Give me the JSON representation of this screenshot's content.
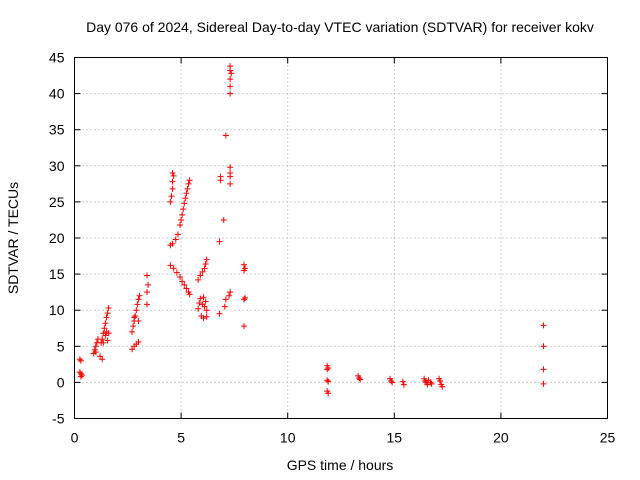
{
  "chart_data": {
    "type": "scatter",
    "title": "Day 076 of 2024, Sidereal Day-to-day VTEC variation (SDTVAR) for receiver kokv",
    "xlabel": "GPS time / hours",
    "ylabel": "SDTVAR / TECUs",
    "xlim": [
      0,
      25
    ],
    "ylim": [
      -5,
      45
    ],
    "xticks": [
      0,
      5,
      10,
      15,
      20,
      25
    ],
    "yticks": [
      -5,
      0,
      5,
      10,
      15,
      20,
      25,
      30,
      35,
      40,
      45
    ],
    "grid": true,
    "marker": "+",
    "color": "#ff0000",
    "series": [
      {
        "name": "SDTVAR",
        "points": [
          [
            0.25,
            3.2
          ],
          [
            0.3,
            3.0
          ],
          [
            0.25,
            1.4
          ],
          [
            0.3,
            1.2
          ],
          [
            0.35,
            1.0
          ],
          [
            0.3,
            0.8
          ],
          [
            0.9,
            4.0
          ],
          [
            0.95,
            4.5
          ],
          [
            1.0,
            5.0
          ],
          [
            1.05,
            5.5
          ],
          [
            1.1,
            6.0
          ],
          [
            1.0,
            4.2
          ],
          [
            1.2,
            3.6
          ],
          [
            1.3,
            3.2
          ],
          [
            1.25,
            5.5
          ],
          [
            1.3,
            6.0
          ],
          [
            1.35,
            6.8
          ],
          [
            1.4,
            7.5
          ],
          [
            1.45,
            8.2
          ],
          [
            1.5,
            9.0
          ],
          [
            1.55,
            9.6
          ],
          [
            1.6,
            10.3
          ],
          [
            1.35,
            5.5
          ],
          [
            1.45,
            6.5
          ],
          [
            1.5,
            7.0
          ],
          [
            1.6,
            6.8
          ],
          [
            1.55,
            5.8
          ],
          [
            2.7,
            4.6
          ],
          [
            2.8,
            5.0
          ],
          [
            2.9,
            5.3
          ],
          [
            3.0,
            5.6
          ],
          [
            2.7,
            7.0
          ],
          [
            2.75,
            7.8
          ],
          [
            2.8,
            8.5
          ],
          [
            2.85,
            9.2
          ],
          [
            2.9,
            10.0
          ],
          [
            2.95,
            10.8
          ],
          [
            3.0,
            11.5
          ],
          [
            3.05,
            12.0
          ],
          [
            2.8,
            9.0
          ],
          [
            3.0,
            8.5
          ],
          [
            3.4,
            10.8
          ],
          [
            3.4,
            12.5
          ],
          [
            3.45,
            13.5
          ],
          [
            3.4,
            14.8
          ],
          [
            4.5,
            25.0
          ],
          [
            4.55,
            25.8
          ],
          [
            4.6,
            26.8
          ],
          [
            4.6,
            27.8
          ],
          [
            4.65,
            28.6
          ],
          [
            4.6,
            29.0
          ],
          [
            4.5,
            19.0
          ],
          [
            4.6,
            19.2
          ],
          [
            4.75,
            19.8
          ],
          [
            4.85,
            20.5
          ],
          [
            4.95,
            21.8
          ],
          [
            5.0,
            22.5
          ],
          [
            5.05,
            23.2
          ],
          [
            5.1,
            24.0
          ],
          [
            5.15,
            24.8
          ],
          [
            5.2,
            25.5
          ],
          [
            5.25,
            26.2
          ],
          [
            5.3,
            26.8
          ],
          [
            5.35,
            27.5
          ],
          [
            5.4,
            28.0
          ],
          [
            4.5,
            16.2
          ],
          [
            4.65,
            15.8
          ],
          [
            4.8,
            15.2
          ],
          [
            4.95,
            14.6
          ],
          [
            5.05,
            14.0
          ],
          [
            5.15,
            13.5
          ],
          [
            5.25,
            13.0
          ],
          [
            5.35,
            12.5
          ],
          [
            5.4,
            12.2
          ],
          [
            5.8,
            10.2
          ],
          [
            5.85,
            11.0
          ],
          [
            5.9,
            11.6
          ],
          [
            6.0,
            10.8
          ],
          [
            6.05,
            11.8
          ],
          [
            6.1,
            10.5
          ],
          [
            6.15,
            11.2
          ],
          [
            6.2,
            10.0
          ],
          [
            5.95,
            9.2
          ],
          [
            6.05,
            8.9
          ],
          [
            6.2,
            9.1
          ],
          [
            5.8,
            14.2
          ],
          [
            5.9,
            14.8
          ],
          [
            6.0,
            15.3
          ],
          [
            6.1,
            15.8
          ],
          [
            6.15,
            16.4
          ],
          [
            6.2,
            17.0
          ],
          [
            6.8,
            9.5
          ],
          [
            6.8,
            19.5
          ],
          [
            6.85,
            28.0
          ],
          [
            6.85,
            28.5
          ],
          [
            7.0,
            22.5
          ],
          [
            7.05,
            10.5
          ],
          [
            7.1,
            11.5
          ],
          [
            7.1,
            34.2
          ],
          [
            7.25,
            12.0
          ],
          [
            7.3,
            12.5
          ],
          [
            7.3,
            27.5
          ],
          [
            7.3,
            28.5
          ],
          [
            7.3,
            29.0
          ],
          [
            7.3,
            29.8
          ],
          [
            7.3,
            40.0
          ],
          [
            7.3,
            41.0
          ],
          [
            7.3,
            42.0
          ],
          [
            7.35,
            42.8
          ],
          [
            7.3,
            43.2
          ],
          [
            7.3,
            43.8
          ],
          [
            7.95,
            16.3
          ],
          [
            8.0,
            15.8
          ],
          [
            7.95,
            15.5
          ],
          [
            8.0,
            11.7
          ],
          [
            7.95,
            11.5
          ],
          [
            7.95,
            7.8
          ],
          [
            11.85,
            2.3
          ],
          [
            11.9,
            2.0
          ],
          [
            11.85,
            1.8
          ],
          [
            11.85,
            0.3
          ],
          [
            11.9,
            0.1
          ],
          [
            11.85,
            -1.2
          ],
          [
            11.9,
            -1.5
          ],
          [
            13.3,
            0.9
          ],
          [
            13.35,
            0.6
          ],
          [
            13.4,
            0.4
          ],
          [
            14.8,
            0.5
          ],
          [
            14.85,
            0.2
          ],
          [
            14.9,
            0.0
          ],
          [
            15.4,
            0.1
          ],
          [
            15.45,
            -0.3
          ],
          [
            16.4,
            0.5
          ],
          [
            16.45,
            0.2
          ],
          [
            16.5,
            0.0
          ],
          [
            16.55,
            -0.3
          ],
          [
            16.6,
            0.3
          ],
          [
            16.7,
            0.0
          ],
          [
            16.75,
            -0.2
          ],
          [
            17.1,
            0.5
          ],
          [
            17.15,
            0.2
          ],
          [
            17.2,
            -0.3
          ],
          [
            17.25,
            -0.6
          ],
          [
            22.0,
            7.9
          ],
          [
            22.0,
            5.0
          ],
          [
            22.0,
            1.8
          ],
          [
            22.0,
            -0.2
          ]
        ]
      }
    ]
  }
}
